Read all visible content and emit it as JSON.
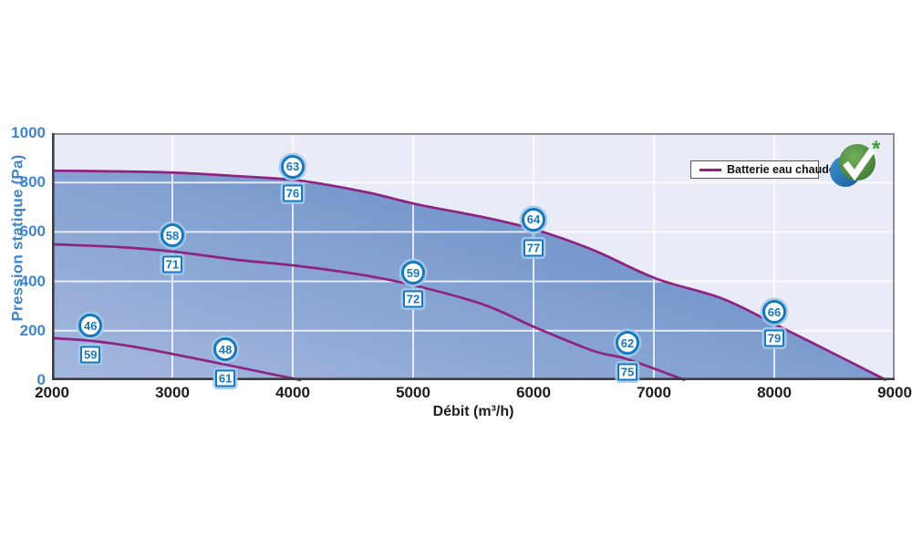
{
  "colors": {
    "plot_background": "#e9ecf7",
    "area_gradient": [
      "#a6b8de",
      "#84a1d1",
      "#5d88c4"
    ],
    "curve": "#8e2382",
    "grid": "#ffffff",
    "axis_dark": "#3c3c42",
    "axis_light": "#8e8e96",
    "marker_blue": "#1878bd",
    "marker_halo": "#a4cae8",
    "connector": "#9fc6e6",
    "tick_label_blue": "#3e86c9",
    "tick_label_dark": "#1d1d1d",
    "legend_border": "#55555b",
    "logo_green": "#4c8a3e",
    "logo_blue": "#2b7cba",
    "asterisk_green": "#3f9b35"
  },
  "chart_data": {
    "type": "area",
    "title": "",
    "xlabel": "Débit (m³/h)",
    "ylabel": "Pression statique (Pa)",
    "xlim": [
      2000,
      9000
    ],
    "ylim": [
      0,
      1000
    ],
    "x_ticks": [
      2000,
      3000,
      4000,
      5000,
      6000,
      7000,
      8000,
      9000
    ],
    "y_ticks": [
      0,
      200,
      400,
      600,
      800,
      1000
    ],
    "grid": true,
    "legend": {
      "label": "Batterie eau chaude",
      "position": "top-right"
    },
    "logo": {
      "name": "eco-check-logo",
      "asterisk": "*"
    },
    "series": [
      {
        "name": "courbe-vitesse-max-enveloppe",
        "fill": true,
        "points": [
          [
            2000,
            848
          ],
          [
            2550,
            845
          ],
          [
            3020,
            840
          ],
          [
            3540,
            826
          ],
          [
            4070,
            807
          ],
          [
            4600,
            762
          ],
          [
            5040,
            711
          ],
          [
            5590,
            659
          ],
          [
            6030,
            607
          ],
          [
            6500,
            526
          ],
          [
            7020,
            411
          ],
          [
            7570,
            330
          ],
          [
            8040,
            218
          ],
          [
            8480,
            111
          ],
          [
            8930,
            0
          ]
        ]
      },
      {
        "name": "courbe-vitesse-intermediaire",
        "fill": false,
        "points": [
          [
            2000,
            550
          ],
          [
            2550,
            539
          ],
          [
            3020,
            520
          ],
          [
            3540,
            487
          ],
          [
            4070,
            461
          ],
          [
            4600,
            424
          ],
          [
            5040,
            380
          ],
          [
            5590,
            305
          ],
          [
            6030,
            210
          ],
          [
            6500,
            118
          ],
          [
            6780,
            85
          ],
          [
            7260,
            0
          ]
        ]
      },
      {
        "name": "courbe-vitesse-min",
        "fill": false,
        "points": [
          [
            2000,
            170
          ],
          [
            2330,
            159
          ],
          [
            2710,
            133
          ],
          [
            3030,
            103
          ],
          [
            3440,
            63
          ],
          [
            3770,
            30
          ],
          [
            4070,
            0
          ]
        ]
      }
    ],
    "markers": [
      {
        "x": 2320,
        "circle": "46",
        "circle_y": 220,
        "box": "59",
        "box_y": 105
      },
      {
        "x": 3440,
        "circle": "48",
        "circle_y": 125,
        "box": "61",
        "box_y": 8
      },
      {
        "x": 3000,
        "circle": "58",
        "circle_y": 585,
        "box": "71",
        "box_y": 470
      },
      {
        "x": 4000,
        "circle": "63",
        "circle_y": 865,
        "box": "76",
        "box_y": 755
      },
      {
        "x": 5000,
        "circle": "59",
        "circle_y": 435,
        "box": "72",
        "box_y": 330
      },
      {
        "x": 6000,
        "circle": "64",
        "circle_y": 650,
        "box": "77",
        "box_y": 535
      },
      {
        "x": 6780,
        "circle": "62",
        "circle_y": 150,
        "box": "75",
        "box_y": 35
      },
      {
        "x": 8000,
        "circle": "66",
        "circle_y": 275,
        "box": "79",
        "box_y": 170
      }
    ]
  }
}
